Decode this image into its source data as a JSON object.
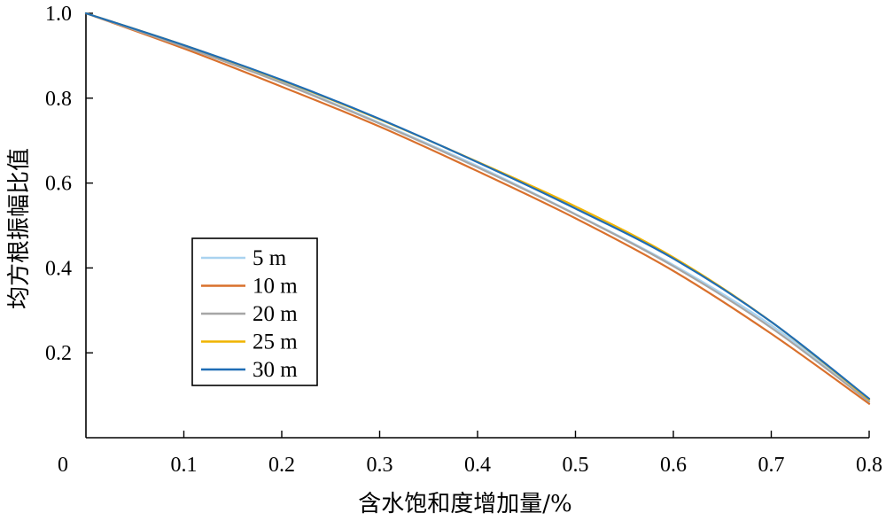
{
  "chart_data": {
    "type": "line",
    "xlabel": "含水饱和度增加量/%",
    "ylabel": "均方根振幅比值",
    "xlim": [
      0,
      0.8
    ],
    "ylim": [
      0,
      1.0
    ],
    "x_ticks": [
      "0",
      "0.1",
      "0.2",
      "0.3",
      "0.4",
      "0.5",
      "0.6",
      "0.7",
      "0.8"
    ],
    "y_ticks": [
      "0.2",
      "0.4",
      "0.6",
      "0.8",
      "1.0"
    ],
    "grid": false,
    "legend_position": "left",
    "x": [
      0,
      0.1,
      0.2,
      0.3,
      0.4,
      0.5,
      0.6,
      0.7,
      0.8
    ],
    "series": [
      {
        "name": "5 m",
        "color": "#a9d3f0",
        "values": [
          1.0,
          0.922,
          0.838,
          0.742,
          0.64,
          0.527,
          0.407,
          0.265,
          0.09
        ]
      },
      {
        "name": "10 m",
        "color": "#d9702c",
        "values": [
          1.0,
          0.917,
          0.827,
          0.733,
          0.628,
          0.517,
          0.393,
          0.245,
          0.08
        ]
      },
      {
        "name": "20 m",
        "color": "#a6a6a6",
        "values": [
          1.0,
          0.921,
          0.836,
          0.74,
          0.637,
          0.526,
          0.404,
          0.259,
          0.085
        ]
      },
      {
        "name": "25 m",
        "color": "#f0b400",
        "values": [
          1.0,
          0.925,
          0.842,
          0.75,
          0.65,
          0.545,
          0.425,
          0.273,
          0.09
        ]
      },
      {
        "name": "30 m",
        "color": "#1f6db5",
        "values": [
          1.0,
          0.925,
          0.843,
          0.751,
          0.649,
          0.54,
          0.422,
          0.273,
          0.092
        ]
      }
    ]
  }
}
